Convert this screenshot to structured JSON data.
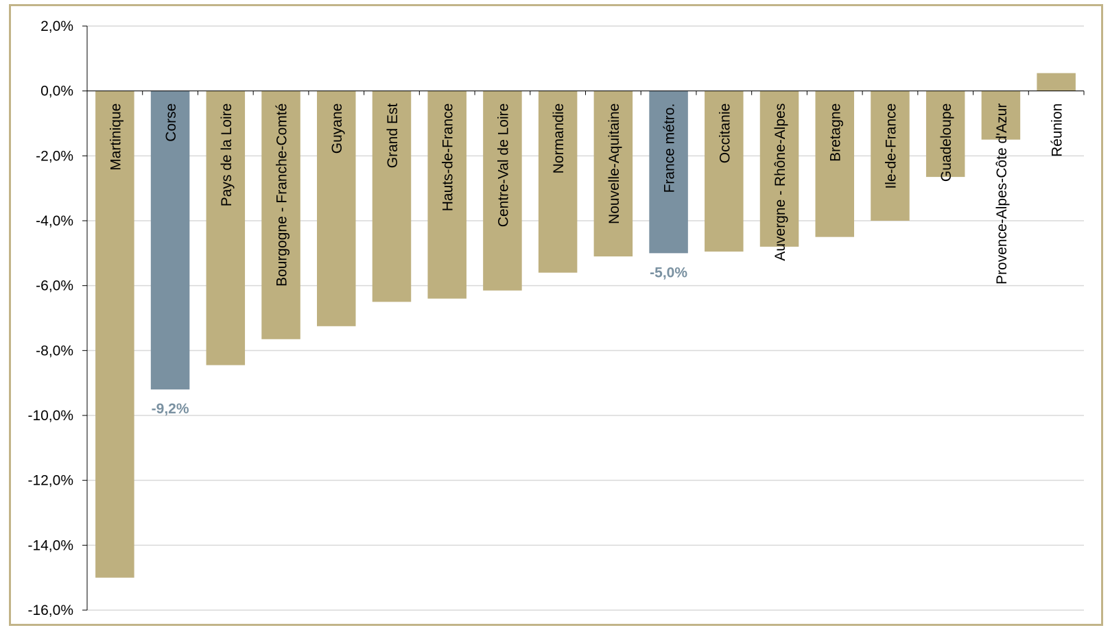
{
  "chart_data": {
    "type": "bar",
    "title": "",
    "xlabel": "",
    "ylabel": "",
    "ylim": [
      -16,
      2
    ],
    "yticks": [
      2,
      0,
      -2,
      -4,
      -6,
      -8,
      -10,
      -12,
      -14,
      -16
    ],
    "ytick_labels": [
      "2,0%",
      "0,0%",
      "-2,0%",
      "-4,0%",
      "-6,0%",
      "-8,0%",
      "-10,0%",
      "-12,0%",
      "-14,0%",
      "-16,0%"
    ],
    "grid": true,
    "legend": "none",
    "colors": {
      "default": "#beb07f",
      "highlight": "#7a91a1",
      "grid": "#d9d9d9",
      "frame": "#c2b488"
    },
    "categories": [
      "Martinique",
      "Corse",
      "Pays de la Loire",
      "Bourgogne - Franche-Comté",
      "Guyane",
      "Grand Est",
      "Hauts-de-France",
      "Centre-Val de Loire",
      "Normandie",
      "Nouvelle-Aquitaine",
      "France métro.",
      "Occitanie",
      "Auvergne - Rhône-Alpes",
      "Bretagne",
      "Ile-de-France",
      "Guadeloupe",
      "Provence-Alpes-Côte d'Azur",
      "Réunion"
    ],
    "values": [
      -15.0,
      -9.2,
      -8.45,
      -7.65,
      -7.25,
      -6.5,
      -6.4,
      -6.15,
      -5.6,
      -5.1,
      -5.0,
      -4.95,
      -4.8,
      -4.5,
      -4.0,
      -2.65,
      -1.5,
      0.55
    ],
    "highlight": [
      false,
      true,
      false,
      false,
      false,
      false,
      false,
      false,
      false,
      false,
      true,
      false,
      false,
      false,
      false,
      false,
      false,
      false
    ],
    "data_labels": [
      "",
      "-9,2%",
      "",
      "",
      "",
      "",
      "",
      "",
      "",
      "",
      "-5,0%",
      "",
      "",
      "",
      "",
      "",
      "",
      ""
    ]
  }
}
